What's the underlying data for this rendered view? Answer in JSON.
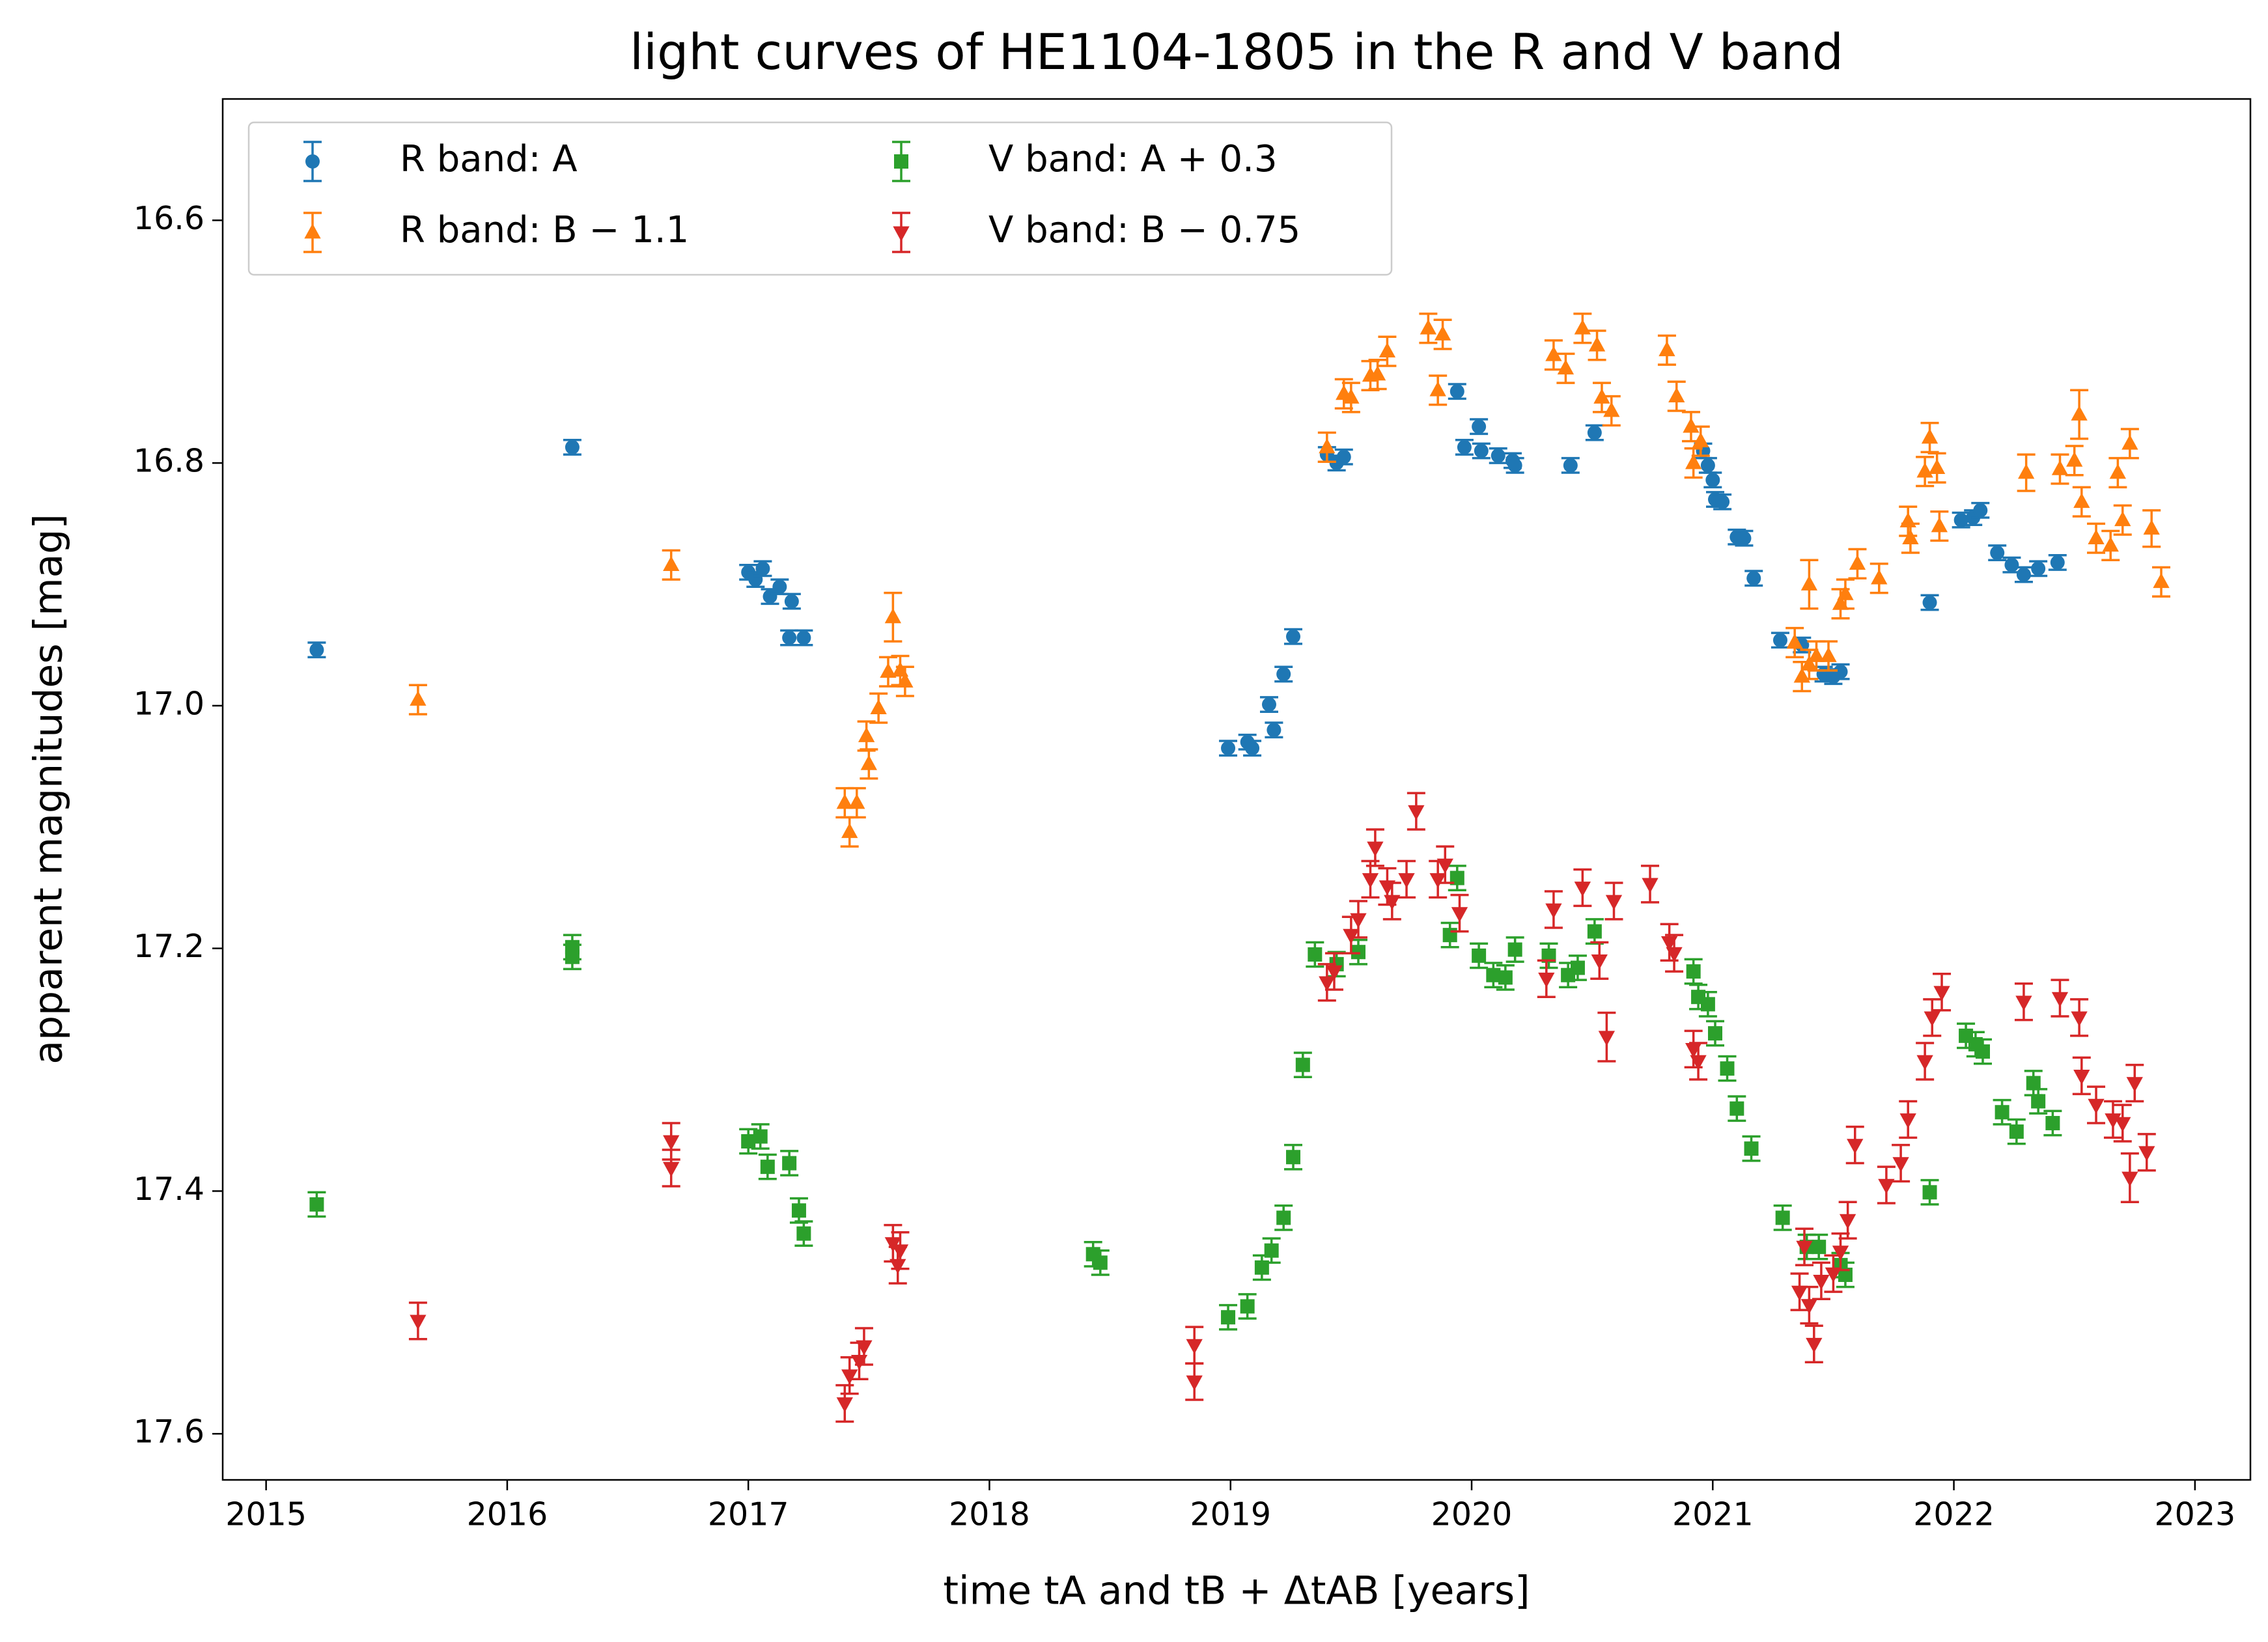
{
  "chart_data": {
    "type": "scatter",
    "title": "light curves of HE1104-1805 in the R and V band",
    "x_label": "time tA and tB + ΔtAB [years]",
    "y_label": "apparent magnitudes [mag]",
    "xlim": [
      2014.82,
      2023.23
    ],
    "ylim": [
      17.638,
      16.5
    ],
    "xticks": [
      2015,
      2016,
      2017,
      2018,
      2019,
      2020,
      2021,
      2022,
      2023
    ],
    "yticks": [
      16.6,
      16.8,
      {
        "value": 17,
        "label": "17.0"
      },
      17.2,
      17.4,
      17.6
    ],
    "legend": "upper left",
    "series": [
      {
        "name": "R band: A",
        "color": "#1f77b4",
        "marker": "o",
        "x": [
          2015.21,
          2016.27,
          2017.0,
          2017.03,
          2017.06,
          2017.09,
          2017.13,
          2017.18,
          2017.17,
          2017.23,
          2018.99,
          2019.07,
          2019.09,
          2019.16,
          2019.18,
          2019.22,
          2019.26,
          2019.4,
          2019.44,
          2019.47,
          2019.94,
          2019.97,
          2020.03,
          2020.04,
          2020.11,
          2020.17,
          2020.18,
          2020.41,
          2020.51,
          2020.96,
          2020.98,
          2021.0,
          2021.01,
          2021.04,
          2021.1,
          2021.13,
          2021.17,
          2021.28,
          2021.37,
          2021.46,
          2021.5,
          2021.53,
          2021.9,
          2022.03,
          2022.08,
          2022.11,
          2022.18,
          2022.24,
          2022.29,
          2022.35,
          2022.43
        ],
        "values": [
          16.954,
          16.787,
          16.89,
          16.896,
          16.887,
          16.91,
          16.902,
          16.914,
          16.944,
          16.944,
          17.035,
          17.03,
          17.035,
          16.999,
          17.02,
          16.974,
          16.943,
          16.793,
          16.8,
          16.795,
          16.741,
          16.787,
          16.77,
          16.79,
          16.794,
          16.798,
          16.802,
          16.802,
          16.775,
          16.79,
          16.802,
          16.814,
          16.83,
          16.832,
          16.861,
          16.862,
          16.895,
          16.946,
          16.95,
          16.974,
          16.976,
          16.972,
          16.915,
          16.847,
          16.845,
          16.839,
          16.874,
          16.884,
          16.892,
          16.887,
          16.882
        ],
        "errors": [
          0.006,
          0.006,
          0.006,
          0.006,
          0.006,
          0.006,
          0.006,
          0.006,
          0.006,
          0.006,
          0.006,
          0.006,
          0.006,
          0.006,
          0.006,
          0.006,
          0.006,
          0.006,
          0.006,
          0.006,
          0.006,
          0.006,
          0.006,
          0.006,
          0.006,
          0.006,
          0.006,
          0.006,
          0.006,
          0.006,
          0.006,
          0.006,
          0.006,
          0.006,
          0.006,
          0.006,
          0.006,
          0.006,
          0.006,
          0.006,
          0.006,
          0.006,
          0.006,
          0.006,
          0.006,
          0.006,
          0.006,
          0.006,
          0.006,
          0.006,
          0.006
        ]
      },
      {
        "name": "R band: B − 1.1",
        "color": "#ff7f0e",
        "marker": "^",
        "x": [
          2015.63,
          2016.68,
          2017.4,
          2017.42,
          2017.45,
          2017.49,
          2017.5,
          2017.54,
          2017.58,
          2017.6,
          2017.63,
          2017.65,
          2019.4,
          2019.47,
          2019.5,
          2019.58,
          2019.61,
          2019.65,
          2019.82,
          2019.86,
          2019.88,
          2020.34,
          2020.39,
          2020.46,
          2020.52,
          2020.54,
          2020.58,
          2020.81,
          2020.85,
          2020.91,
          2020.92,
          2020.95,
          2021.34,
          2021.37,
          2021.4,
          2021.43,
          2021.4,
          2021.48,
          2021.53,
          2021.55,
          2021.6,
          2021.69,
          2021.81,
          2021.82,
          2021.88,
          2021.9,
          2021.93,
          2021.94,
          2022.3,
          2022.44,
          2022.5,
          2022.52,
          2022.53,
          2022.59,
          2022.65,
          2022.68,
          2022.7,
          2022.73,
          2022.82,
          2022.86
        ],
        "values": [
          16.995,
          16.884,
          17.08,
          17.104,
          17.08,
          17.025,
          17.048,
          17.002,
          16.972,
          16.927,
          16.971,
          16.98,
          16.787,
          16.743,
          16.746,
          16.728,
          16.727,
          16.708,
          16.689,
          16.74,
          16.694,
          16.711,
          16.722,
          16.689,
          16.703,
          16.746,
          16.757,
          16.707,
          16.745,
          16.77,
          16.8,
          16.782,
          16.948,
          16.976,
          16.966,
          16.959,
          16.9,
          16.959,
          16.916,
          16.908,
          16.883,
          16.895,
          16.848,
          16.862,
          16.807,
          16.779,
          16.804,
          16.852,
          16.808,
          16.805,
          16.798,
          16.76,
          16.832,
          16.862,
          16.868,
          16.808,
          16.847,
          16.784,
          16.854,
          16.898
        ],
        "errors": [
          0.012,
          0.012,
          0.012,
          0.012,
          0.012,
          0.012,
          0.012,
          0.012,
          0.012,
          0.02,
          0.012,
          0.012,
          0.012,
          0.012,
          0.012,
          0.012,
          0.012,
          0.012,
          0.012,
          0.012,
          0.012,
          0.012,
          0.012,
          0.012,
          0.012,
          0.012,
          0.012,
          0.012,
          0.012,
          0.012,
          0.012,
          0.012,
          0.012,
          0.012,
          0.012,
          0.012,
          0.02,
          0.012,
          0.012,
          0.012,
          0.012,
          0.012,
          0.012,
          0.012,
          0.012,
          0.012,
          0.012,
          0.012,
          0.015,
          0.012,
          0.012,
          0.02,
          0.012,
          0.012,
          0.012,
          0.012,
          0.012,
          0.012,
          0.015,
          0.012
        ]
      },
      {
        "name": "V band: A + 0.3",
        "color": "#2ca02c",
        "marker": "s",
        "x": [
          2015.21,
          2016.27,
          2016.27,
          2017.0,
          2017.05,
          2017.08,
          2017.17,
          2017.21,
          2017.23,
          2018.43,
          2018.46,
          2018.99,
          2019.07,
          2019.13,
          2019.17,
          2019.22,
          2019.26,
          2019.3,
          2019.35,
          2019.44,
          2019.53,
          2019.91,
          2019.94,
          2020.03,
          2020.09,
          2020.14,
          2020.18,
          2020.32,
          2020.4,
          2020.44,
          2020.51,
          2020.92,
          2020.94,
          2020.98,
          2021.01,
          2021.06,
          2021.1,
          2021.16,
          2021.29,
          2021.39,
          2021.44,
          2021.53,
          2021.55,
          2021.9,
          2022.05,
          2022.09,
          2022.12,
          2022.2,
          2022.26,
          2022.33,
          2022.35,
          2022.41
        ],
        "values": [
          17.411,
          17.199,
          17.207,
          17.359,
          17.355,
          17.38,
          17.377,
          17.416,
          17.435,
          17.452,
          17.459,
          17.504,
          17.495,
          17.463,
          17.449,
          17.422,
          17.372,
          17.296,
          17.205,
          17.213,
          17.203,
          17.189,
          17.142,
          17.206,
          17.222,
          17.224,
          17.201,
          17.206,
          17.222,
          17.216,
          17.186,
          17.219,
          17.24,
          17.246,
          17.27,
          17.299,
          17.332,
          17.365,
          17.422,
          17.446,
          17.446,
          17.461,
          17.469,
          17.401,
          17.272,
          17.279,
          17.285,
          17.335,
          17.351,
          17.311,
          17.326,
          17.344
        ],
        "errors": [
          0.01,
          0.01,
          0.01,
          0.01,
          0.01,
          0.01,
          0.01,
          0.01,
          0.01,
          0.01,
          0.01,
          0.01,
          0.01,
          0.01,
          0.01,
          0.01,
          0.01,
          0.01,
          0.01,
          0.01,
          0.01,
          0.01,
          0.01,
          0.01,
          0.01,
          0.01,
          0.01,
          0.01,
          0.01,
          0.01,
          0.01,
          0.01,
          0.01,
          0.01,
          0.01,
          0.01,
          0.01,
          0.01,
          0.01,
          0.01,
          0.01,
          0.01,
          0.01,
          0.01,
          0.01,
          0.01,
          0.01,
          0.01,
          0.01,
          0.01,
          0.01,
          0.01
        ]
      },
      {
        "name": "V band: B − 0.75",
        "color": "#d62728",
        "marker": "v",
        "x": [
          2015.63,
          2016.68,
          2016.68,
          2017.4,
          2017.42,
          2017.46,
          2017.48,
          2017.6,
          2017.62,
          2017.63,
          2018.85,
          2018.85,
          2019.4,
          2019.43,
          2019.5,
          2019.53,
          2019.58,
          2019.6,
          2019.65,
          2019.67,
          2019.73,
          2019.77,
          2019.86,
          2019.89,
          2019.95,
          2020.31,
          2020.34,
          2020.46,
          2020.53,
          2020.56,
          2020.59,
          2020.74,
          2020.82,
          2020.84,
          2020.92,
          2020.94,
          2021.36,
          2021.38,
          2021.4,
          2021.42,
          2021.45,
          2021.5,
          2021.53,
          2021.56,
          2021.59,
          2021.72,
          2021.78,
          2021.81,
          2021.88,
          2021.91,
          2021.95,
          2022.29,
          2022.44,
          2022.52,
          2022.53,
          2022.59,
          2022.66,
          2022.7,
          2022.73,
          2022.75,
          2022.8
        ],
        "values": [
          17.507,
          17.359,
          17.381,
          17.575,
          17.552,
          17.54,
          17.528,
          17.443,
          17.461,
          17.449,
          17.527,
          17.557,
          17.228,
          17.219,
          17.189,
          17.176,
          17.143,
          17.117,
          17.149,
          17.161,
          17.143,
          17.087,
          17.143,
          17.131,
          17.171,
          17.225,
          17.168,
          17.15,
          17.21,
          17.273,
          17.161,
          17.147,
          17.195,
          17.204,
          17.283,
          17.293,
          17.483,
          17.446,
          17.494,
          17.526,
          17.474,
          17.468,
          17.45,
          17.424,
          17.362,
          17.395,
          17.377,
          17.341,
          17.293,
          17.257,
          17.236,
          17.244,
          17.241,
          17.257,
          17.305,
          17.329,
          17.341,
          17.344,
          17.389,
          17.311,
          17.368
        ],
        "errors": [
          0.015,
          0.015,
          0.015,
          0.015,
          0.015,
          0.015,
          0.015,
          0.015,
          0.015,
          0.015,
          0.015,
          0.015,
          0.015,
          0.015,
          0.015,
          0.015,
          0.015,
          0.015,
          0.015,
          0.015,
          0.015,
          0.015,
          0.015,
          0.015,
          0.015,
          0.015,
          0.015,
          0.015,
          0.015,
          0.02,
          0.015,
          0.015,
          0.015,
          0.015,
          0.015,
          0.015,
          0.015,
          0.015,
          0.015,
          0.015,
          0.015,
          0.015,
          0.015,
          0.015,
          0.015,
          0.015,
          0.015,
          0.015,
          0.015,
          0.015,
          0.015,
          0.015,
          0.015,
          0.015,
          0.015,
          0.015,
          0.015,
          0.015,
          0.02,
          0.015,
          0.015
        ]
      }
    ]
  }
}
